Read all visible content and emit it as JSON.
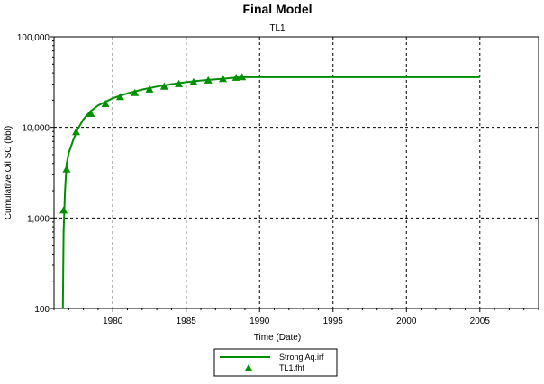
{
  "chart_data": {
    "type": "line",
    "title": "Final Model",
    "subtitle": "TL1",
    "xlabel": "Time (Date)",
    "ylabel": "Cumulative Oil SC (bbl)",
    "y_scale": "log",
    "xlim": [
      1976.0,
      2009.0
    ],
    "ylim": [
      100,
      100000
    ],
    "x_ticks": [
      1980,
      1985,
      1990,
      1995,
      2000,
      2005
    ],
    "x_tick_labels": [
      "1980",
      "1985",
      "1990",
      "1995",
      "2000",
      "2005"
    ],
    "y_ticks": [
      100,
      1000,
      10000,
      100000
    ],
    "y_tick_labels": [
      "100",
      "1,000",
      "10,000",
      "100,000"
    ],
    "grid": true,
    "legend_position": "bottom-center",
    "colors": {
      "series": "#008f00"
    },
    "series": [
      {
        "name": "Strong Aq.irf",
        "style": "line",
        "points": [
          [
            1976.6,
            100
          ],
          [
            1976.65,
            700
          ],
          [
            1976.75,
            2000
          ],
          [
            1976.85,
            3900
          ],
          [
            1977.0,
            5200
          ],
          [
            1977.3,
            7200
          ],
          [
            1977.6,
            9500
          ],
          [
            1978.0,
            12300
          ],
          [
            1978.5,
            15200
          ],
          [
            1979.0,
            17500
          ],
          [
            1980.0,
            21000
          ],
          [
            1981.0,
            23800
          ],
          [
            1982.0,
            26200
          ],
          [
            1983.0,
            28200
          ],
          [
            1984.0,
            30000
          ],
          [
            1985.0,
            31600
          ],
          [
            1986.0,
            32900
          ],
          [
            1987.0,
            34000
          ],
          [
            1988.0,
            35000
          ],
          [
            1988.8,
            35800
          ],
          [
            1990.0,
            35800
          ],
          [
            2000.0,
            35800
          ],
          [
            2005.0,
            35800
          ]
        ]
      },
      {
        "name": "TL1.fhf",
        "style": "triangle-markers",
        "points": [
          [
            1976.65,
            1200
          ],
          [
            1976.85,
            3400
          ],
          [
            1977.5,
            8800
          ],
          [
            1978.5,
            14000
          ],
          [
            1979.5,
            18000
          ],
          [
            1980.5,
            21500
          ],
          [
            1981.5,
            23800
          ],
          [
            1982.5,
            26000
          ],
          [
            1983.5,
            28000
          ],
          [
            1984.5,
            29800
          ],
          [
            1985.5,
            31300
          ],
          [
            1986.5,
            32700
          ],
          [
            1987.5,
            34000
          ],
          [
            1988.4,
            35000
          ],
          [
            1988.8,
            35500
          ]
        ]
      }
    ]
  }
}
